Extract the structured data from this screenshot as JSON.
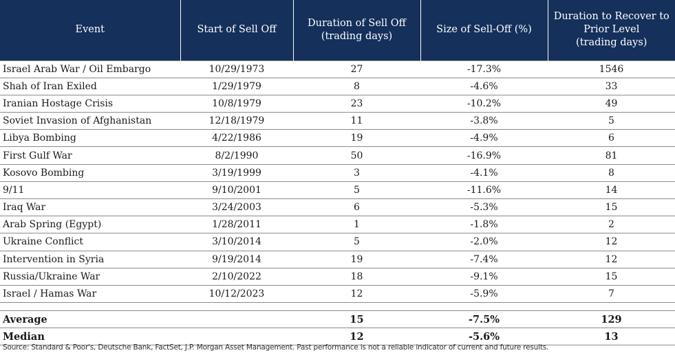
{
  "table": {
    "headers": {
      "event": "Event",
      "start": "Start of Sell Off",
      "duration": [
        "Duration of Sell Off",
        "(trading days)"
      ],
      "size": "Size of Sell-Off (%)",
      "recover": [
        "Duration to Recover to",
        "Prior Level",
        "(trading days)"
      ]
    },
    "rows": [
      {
        "event": "Israel Arab War / Oil Embargo",
        "start": "10/29/1973",
        "duration": "27",
        "size": "-17.3%",
        "recover": "1546"
      },
      {
        "event": "Shah of Iran Exiled",
        "start": "1/29/1979",
        "duration": "8",
        "size": "-4.6%",
        "recover": "33"
      },
      {
        "event": "Iranian Hostage Crisis",
        "start": "10/8/1979",
        "duration": "23",
        "size": "-10.2%",
        "recover": "49"
      },
      {
        "event": "Soviet Invasion of Afghanistan",
        "start": "12/18/1979",
        "duration": "11",
        "size": "-3.8%",
        "recover": "5"
      },
      {
        "event": "Libya Bombing",
        "start": "4/22/1986",
        "duration": "19",
        "size": "-4.9%",
        "recover": "6"
      },
      {
        "event": "First Gulf War",
        "start": "8/2/1990",
        "duration": "50",
        "size": "-16.9%",
        "recover": "81"
      },
      {
        "event": "Kosovo Bombing",
        "start": "3/19/1999",
        "duration": "3",
        "size": "-4.1%",
        "recover": "8"
      },
      {
        "event": "9/11",
        "start": "9/10/2001",
        "duration": "5",
        "size": "-11.6%",
        "recover": "14"
      },
      {
        "event": "Iraq War",
        "start": "3/24/2003",
        "duration": "6",
        "size": "-5.3%",
        "recover": "15"
      },
      {
        "event": "Arab Spring (Egypt)",
        "start": "1/28/2011",
        "duration": "1",
        "size": "-1.8%",
        "recover": "2"
      },
      {
        "event": "Ukraine Conflict",
        "start": "3/10/2014",
        "duration": "5",
        "size": "-2.0%",
        "recover": "12"
      },
      {
        "event": "Intervention in Syria",
        "start": "9/19/2014",
        "duration": "19",
        "size": "-7.4%",
        "recover": "12"
      },
      {
        "event": "Russia/Ukraine War",
        "start": "2/10/2022",
        "duration": "18",
        "size": "-9.1%",
        "recover": "15"
      },
      {
        "event": "Israel / Hamas War",
        "start": "10/12/2023",
        "duration": "12",
        "size": "-5.9%",
        "recover": "7"
      }
    ],
    "summary": [
      {
        "label": "Average",
        "start": "",
        "duration": "15",
        "size": "-7.5%",
        "recover": "129"
      },
      {
        "label": "Median",
        "start": "",
        "duration": "12",
        "size": "-5.6%",
        "recover": "13"
      }
    ]
  },
  "source_note": "Source: Standard & Poor's, Deutsche Bank, FactSet, J.P. Morgan Asset Management. Past performance is not a reliable indicator of current and future results.",
  "colors": {
    "header_bg": "#14305b",
    "header_text": "#ffffff",
    "rule": "#8a8a8a"
  }
}
